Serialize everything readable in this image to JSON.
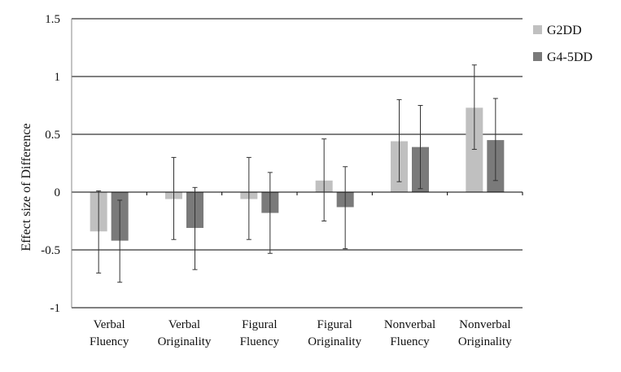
{
  "chart_data": {
    "type": "bar",
    "title": "",
    "xlabel": "",
    "ylabel": "Effect size of Difference",
    "ylim": [
      -1,
      1.5
    ],
    "yticks": [
      1.5,
      1,
      0.5,
      0,
      -0.5,
      -1
    ],
    "ytick_labels": [
      "1.5",
      "1",
      "0.5",
      "0",
      "-0.5",
      "-1"
    ],
    "grid": true,
    "legend_position": "top-right",
    "categories": [
      [
        "Verbal",
        "Fluency"
      ],
      [
        "Verbal",
        "Originality"
      ],
      [
        "Figural",
        "Fluency"
      ],
      [
        "Figural",
        "Originality"
      ],
      [
        "Nonverbal",
        "Fluency"
      ],
      [
        "Nonverbal",
        "Originality"
      ]
    ],
    "series": [
      {
        "name": "G2DD",
        "color": "#c0c0c0",
        "values": [
          -0.34,
          -0.06,
          -0.06,
          0.1,
          0.44,
          0.73
        ],
        "err_low": [
          -0.7,
          -0.41,
          -0.41,
          -0.25,
          0.09,
          0.37
        ],
        "err_high": [
          0.01,
          0.3,
          0.3,
          0.46,
          0.8,
          1.1
        ]
      },
      {
        "name": "G4-5DD",
        "color": "#7a7a7a",
        "values": [
          -0.42,
          -0.31,
          -0.18,
          -0.13,
          0.39,
          0.45
        ],
        "err_low": [
          -0.78,
          -0.67,
          -0.53,
          -0.49,
          0.03,
          0.1
        ],
        "err_high": [
          -0.07,
          0.04,
          0.17,
          0.22,
          0.75,
          0.81
        ]
      }
    ]
  }
}
